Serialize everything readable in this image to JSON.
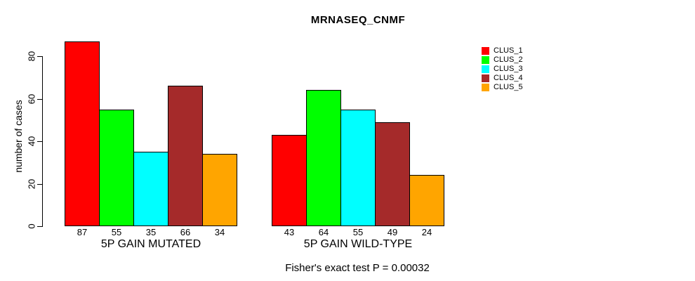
{
  "chart_data": {
    "type": "bar",
    "title": "MRNASEQ_CNMF",
    "ylabel": "number of cases",
    "xlabel": "",
    "footer": "Fisher's exact test P = 0.00032",
    "grid": false,
    "legend_position": "right",
    "y_axis": {
      "ticks": [
        0,
        20,
        40,
        60,
        80
      ],
      "range": [
        0,
        87
      ]
    },
    "categories": [
      "5P GAIN MUTATED",
      "5P GAIN WILD-TYPE"
    ],
    "series": [
      {
        "name": "CLUS_1",
        "color": "#FF0000",
        "values": [
          87,
          43
        ]
      },
      {
        "name": "CLUS_2",
        "color": "#00FF00",
        "values": [
          55,
          64
        ]
      },
      {
        "name": "CLUS_3",
        "color": "#00FFFF",
        "values": [
          35,
          55
        ]
      },
      {
        "name": "CLUS_4",
        "color": "#A52A2A",
        "values": [
          66,
          49
        ]
      },
      {
        "name": "CLUS_5",
        "color": "#FFA500",
        "values": [
          34,
          24
        ]
      }
    ],
    "bar_border_color": "#000000",
    "text_color": "#000000",
    "background_color": "#FFFFFF"
  }
}
